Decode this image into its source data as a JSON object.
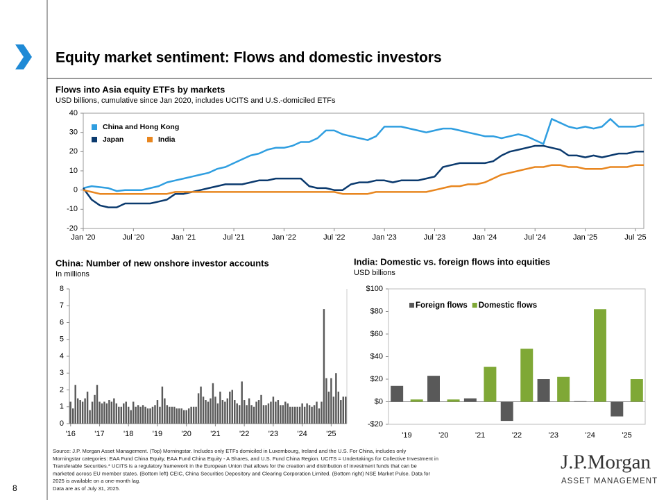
{
  "header": {
    "title": "Equity market sentiment: Flows and domestic investors"
  },
  "chart_data": [
    {
      "type": "line",
      "title": "Flows into Asia equity ETFs by markets",
      "subtitle": "USD billions, cumulative since Jan 2020, includes UCITS and U.S.-domiciled ETFs",
      "x": [
        "2020-01",
        "2020-02",
        "2020-03",
        "2020-04",
        "2020-05",
        "2020-06",
        "2020-07",
        "2020-08",
        "2020-09",
        "2020-10",
        "2020-11",
        "2020-12",
        "2021-01",
        "2021-02",
        "2021-03",
        "2021-04",
        "2021-05",
        "2021-06",
        "2021-07",
        "2021-08",
        "2021-09",
        "2021-10",
        "2021-11",
        "2021-12",
        "2022-01",
        "2022-02",
        "2022-03",
        "2022-04",
        "2022-05",
        "2022-06",
        "2022-07",
        "2022-08",
        "2022-09",
        "2022-10",
        "2022-11",
        "2022-12",
        "2023-01",
        "2023-02",
        "2023-03",
        "2023-04",
        "2023-05",
        "2023-06",
        "2023-07",
        "2023-08",
        "2023-09",
        "2023-10",
        "2023-11",
        "2023-12",
        "2024-01",
        "2024-02",
        "2024-03",
        "2024-04",
        "2024-05",
        "2024-06",
        "2024-07",
        "2024-08",
        "2024-09",
        "2024-10",
        "2024-11",
        "2024-12",
        "2025-01",
        "2025-02",
        "2025-03",
        "2025-04",
        "2025-05",
        "2025-06",
        "2025-07",
        "2025-08"
      ],
      "series": [
        {
          "name": "China and Hong Kong",
          "color": "#2f9ee0",
          "values": [
            1,
            2,
            1.5,
            1,
            -0.5,
            0,
            0,
            0,
            1,
            2,
            4,
            5,
            6,
            7,
            8,
            9,
            11,
            12,
            14,
            16,
            18,
            19,
            21,
            22,
            22,
            23,
            25,
            25,
            27,
            31,
            31,
            29,
            28,
            27,
            26,
            28,
            33,
            33,
            33,
            32,
            31,
            30,
            31,
            32,
            32,
            31,
            30,
            29,
            28,
            28,
            27,
            28,
            29,
            28,
            26,
            24,
            37,
            35,
            33,
            32,
            33,
            32,
            33,
            37,
            33,
            33,
            33,
            34
          ]
        },
        {
          "name": "Japan",
          "color": "#0b3a6e",
          "values": [
            1,
            -5,
            -8,
            -9,
            -9,
            -7,
            -7,
            -7,
            -7,
            -6,
            -5,
            -2,
            -2,
            -1,
            0,
            1,
            2,
            3,
            3,
            3,
            4,
            5,
            5,
            6,
            6,
            6,
            6,
            2,
            1,
            1,
            0,
            0,
            3,
            4,
            4,
            5,
            5,
            4,
            5,
            5,
            5,
            6,
            7,
            12,
            13,
            14,
            14,
            14,
            14,
            15,
            18,
            20,
            21,
            22,
            23,
            23,
            22,
            21,
            18,
            18,
            17,
            18,
            17,
            18,
            19,
            19,
            20,
            20
          ]
        },
        {
          "name": "India",
          "color": "#e8861f",
          "values": [
            0,
            -1,
            -2,
            -2,
            -2,
            -2,
            -2,
            -2,
            -2,
            -2,
            -2,
            -1,
            -1,
            -1,
            -1,
            -1,
            -1,
            -1,
            -1,
            -1,
            -1,
            -1,
            -1,
            -1,
            -1,
            -1,
            -1,
            -1,
            -1,
            -1,
            -1,
            -2,
            -2,
            -2,
            -2,
            -1,
            -1,
            -1,
            -1,
            -1,
            -1,
            -1,
            0,
            1,
            2,
            2,
            3,
            3,
            4,
            6,
            8,
            9,
            10,
            11,
            12,
            12,
            13,
            13,
            12,
            12,
            11,
            11,
            11,
            12,
            12,
            12,
            13,
            13
          ]
        }
      ],
      "xlim": [
        "2020-01",
        "2025-08"
      ],
      "xticks": [
        {
          "value": "2020-01",
          "label": "Jan '20"
        },
        {
          "value": "2020-07",
          "label": "Jul '20"
        },
        {
          "value": "2021-01",
          "label": "Jan '21"
        },
        {
          "value": "2021-07",
          "label": "Jul '21"
        },
        {
          "value": "2022-01",
          "label": "Jan '22"
        },
        {
          "value": "2022-07",
          "label": "Jul '22"
        },
        {
          "value": "2023-01",
          "label": "Jan '23"
        },
        {
          "value": "2023-07",
          "label": "Jul '23"
        },
        {
          "value": "2024-01",
          "label": "Jan '24"
        },
        {
          "value": "2024-07",
          "label": "Jul '24"
        },
        {
          "value": "2025-01",
          "label": "Jan '25"
        },
        {
          "value": "2025-07",
          "label": "Jul '25"
        }
      ],
      "ylim": [
        -20,
        40
      ],
      "yticks": [
        -20,
        -10,
        0,
        10,
        20,
        30,
        40
      ],
      "grid": false,
      "legend": "top-left"
    },
    {
      "type": "bar",
      "title": "China: Number of new onshore investor accounts",
      "subtitle": "In millions",
      "categories": [
        "'16",
        null,
        null,
        null,
        null,
        null,
        null,
        null,
        null,
        null,
        null,
        null,
        "'17",
        null,
        null,
        null,
        null,
        null,
        null,
        null,
        null,
        null,
        null,
        null,
        "'18",
        null,
        null,
        null,
        null,
        null,
        null,
        null,
        null,
        null,
        null,
        null,
        "'19",
        null,
        null,
        null,
        null,
        null,
        null,
        null,
        null,
        null,
        null,
        null,
        "'20",
        null,
        null,
        null,
        null,
        null,
        null,
        null,
        null,
        null,
        null,
        null,
        "'21",
        null,
        null,
        null,
        null,
        null,
        null,
        null,
        null,
        null,
        null,
        null,
        "'22",
        null,
        null,
        null,
        null,
        null,
        null,
        null,
        null,
        null,
        null,
        null,
        "'23",
        null,
        null,
        null,
        null,
        null,
        null,
        null,
        null,
        null,
        null,
        null,
        "'24",
        null,
        null,
        null,
        null,
        null,
        null,
        null,
        null,
        null,
        null,
        null,
        "'25",
        null,
        null,
        null,
        null,
        null,
        null
      ],
      "values": [
        1.3,
        0.9,
        2.3,
        1.5,
        1.4,
        1.3,
        1.5,
        1.9,
        0.8,
        1.3,
        1.7,
        2.3,
        1.3,
        1.2,
        1.3,
        1.2,
        1.4,
        1.3,
        1.5,
        1.2,
        1.0,
        1.0,
        1.2,
        1.3,
        1.0,
        0.8,
        1.3,
        1.0,
        1.1,
        1.0,
        1.1,
        1.0,
        0.9,
        0.9,
        1.0,
        1.1,
        1.4,
        1.0,
        2.2,
        1.5,
        1.1,
        1.0,
        1.0,
        1.0,
        0.9,
        0.9,
        0.9,
        0.8,
        0.8,
        0.9,
        1.0,
        1.0,
        1.0,
        1.8,
        2.2,
        1.6,
        1.4,
        1.3,
        1.5,
        2.4,
        1.6,
        1.2,
        1.9,
        1.4,
        1.3,
        1.5,
        1.9,
        2.0,
        1.4,
        1.2,
        1.1,
        2.5,
        1.4,
        1.1,
        1.5,
        1.1,
        1.0,
        1.3,
        1.4,
        1.7,
        1.1,
        1.1,
        1.2,
        1.3,
        1.6,
        1.3,
        1.4,
        1.1,
        1.1,
        1.3,
        1.2,
        1.0,
        1.0,
        1.0,
        1.0,
        1.0,
        1.2,
        1.0,
        1.2,
        1.1,
        1.0,
        1.1,
        1.3,
        0.9,
        1.3,
        6.8,
        2.7,
        1.9,
        2.7,
        1.6,
        3.0,
        1.9,
        1.4,
        1.6,
        1.6
      ],
      "color": "#595959",
      "ylim": [
        0,
        8
      ],
      "yticks": [
        0,
        1,
        2,
        3,
        4,
        5,
        6,
        7,
        8
      ]
    },
    {
      "type": "bar",
      "title": "India: Domestic vs. foreign flows into equities",
      "subtitle": "USD billions",
      "categories": [
        "'19",
        "'20",
        "'21",
        "'22",
        "'23",
        "'24",
        "'25"
      ],
      "series": [
        {
          "name": "Foreign flows",
          "color": "#595959",
          "values": [
            14,
            23,
            3,
            -17,
            20,
            0.5,
            -13
          ]
        },
        {
          "name": "Domestic flows",
          "color": "#7fa836",
          "values": [
            2,
            2,
            31,
            47,
            22,
            82,
            20
          ]
        }
      ],
      "ylim": [
        -20,
        100
      ],
      "yticks": [
        {
          "value": -20,
          "label": "-$20"
        },
        {
          "value": 0,
          "label": "$0"
        },
        {
          "value": 20,
          "label": "$20"
        },
        {
          "value": 40,
          "label": "$40"
        },
        {
          "value": 60,
          "label": "$60"
        },
        {
          "value": 80,
          "label": "$80"
        },
        {
          "value": 100,
          "label": "$100"
        }
      ],
      "legend": "top-left"
    }
  ],
  "footer": {
    "source": [
      "Source: J.P. Morgan Asset Management. (Top) Morningstar. Includes only ETFs domiciled in Luxembourg, Ireland and the U.S. For China, includes only",
      "Morningstar categories: EAA Fund China Equity, EAA Fund China Equity - A Shares, and U.S. Fund China Region. UCITS = Undertakings for Collective Investment in",
      "Transferable Securities.* UCITS is a regulatory framework in the European Union that allows for the creation and distribution of investment funds that can be",
      "marketed across EU member states. (Bottom left) CEIC, China Securities Depository and Clearing Corporation Limited. (Bottom right) NSE Market Pulse. Data for",
      "2025 is available on a one-month lag.",
      "Data are as of July 31, 2025."
    ],
    "page": "8",
    "logo": "J.P.Morgan",
    "logo_sub": "ASSET MANAGEMENT"
  }
}
